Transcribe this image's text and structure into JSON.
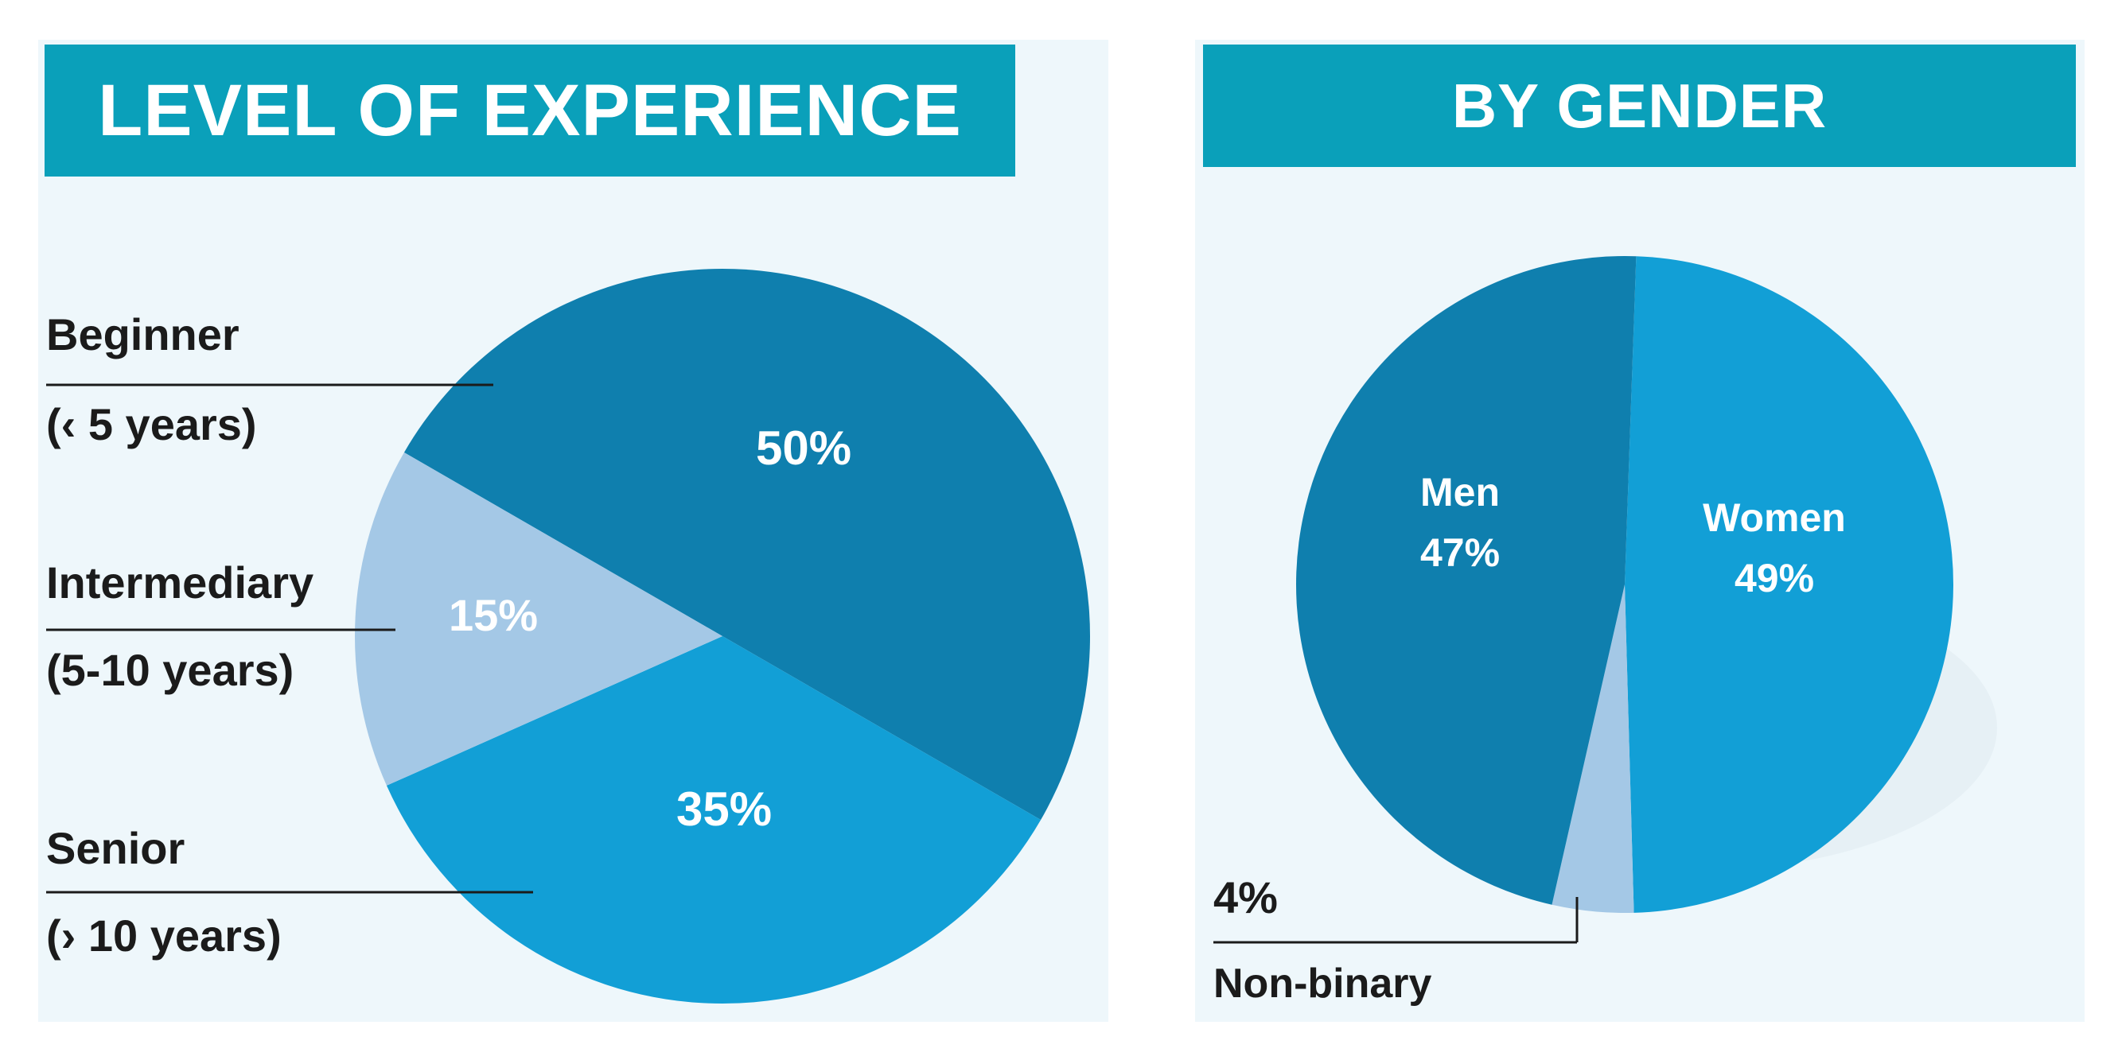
{
  "colors": {
    "banner": "#0aa0ba",
    "panel_bg": "#eef7fb",
    "slice_dark": "#0f7fae",
    "slice_medium": "#129fd6",
    "slice_light": "#a4c8e6",
    "label_text": "#1b1b1b",
    "slice_label_text": "#ffffff"
  },
  "chart_data": [
    {
      "type": "pie",
      "title": "LEVEL OF EXPERIENCE",
      "slices": [
        {
          "label": "Beginner",
          "sublabel": "(‹ 5 years)",
          "value": 50,
          "value_label": "50%",
          "color": "#0f7fae"
        },
        {
          "label": "Intermediary",
          "sublabel": "(5-10 years)",
          "value": 15,
          "value_label": "15%",
          "color": "#a4c8e6"
        },
        {
          "label": "Senior",
          "sublabel": "(› 10 years)",
          "value": 35,
          "value_label": "35%",
          "color": "#129fd6"
        }
      ],
      "legend": "left"
    },
    {
      "type": "pie",
      "title": "BY GENDER",
      "slices": [
        {
          "label": "Women",
          "value": 49,
          "value_label": "49%",
          "color": "#129fd6"
        },
        {
          "label": "Non-binary",
          "value": 4,
          "value_label": "4%",
          "color": "#a4c8e6"
        },
        {
          "label": "Men",
          "value": 47,
          "value_label": "47%",
          "color": "#0f7fae"
        }
      ],
      "legend": "inline"
    }
  ]
}
